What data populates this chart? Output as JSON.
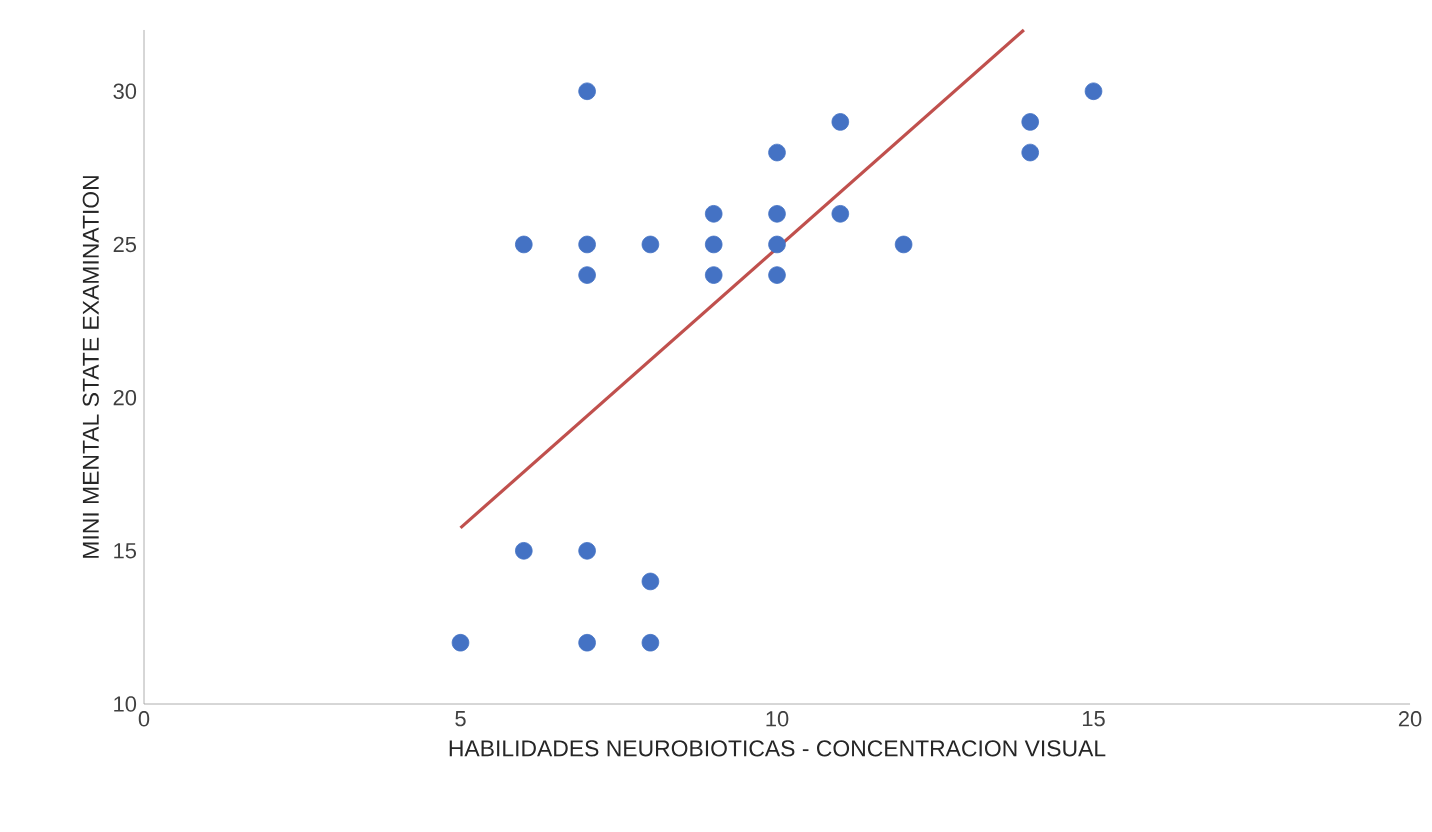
{
  "chart_data": {
    "type": "scatter",
    "xlabel": "HABILIDADES NEUROBIOTICAS - CONCENTRACION VISUAL",
    "ylabel": "MINI MENTAL STATE EXAMINATION",
    "xlim": [
      0,
      20
    ],
    "xticks": [
      0,
      5,
      10,
      15,
      20
    ],
    "ylim": [
      10,
      32
    ],
    "yticks": [
      10,
      15,
      20,
      25,
      30
    ],
    "grid": false,
    "series": [
      {
        "color": "#4472c4",
        "x": [
          5,
          6,
          6,
          7,
          7,
          7,
          7,
          7,
          8,
          8,
          8,
          9,
          9,
          9,
          10,
          10,
          10,
          10,
          11,
          11,
          12,
          14,
          14,
          15
        ],
        "values": [
          12,
          15,
          25,
          30,
          25,
          24,
          15,
          12,
          25,
          14,
          12,
          26,
          25,
          24,
          28,
          26,
          25,
          24,
          29,
          26,
          25,
          29,
          28,
          30
        ]
      },
      {
        "type": "line",
        "color": "#c0504d",
        "x": [
          5,
          13.9
        ],
        "values": [
          15.75,
          32
        ]
      }
    ]
  }
}
